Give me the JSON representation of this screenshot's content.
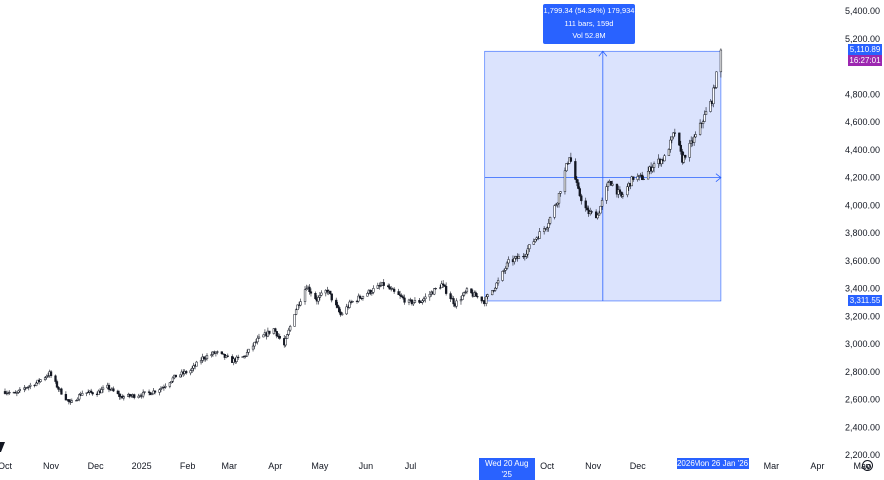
{
  "chart_data": {
    "type": "candlestick",
    "y_axis": {
      "ticks": [
        "5,400.00",
        "5,200.00",
        "4,800.00",
        "4,600.00",
        "4,400.00",
        "4,200.00",
        "4,000.00",
        "3,800.00",
        "3,600.00",
        "3,400.00",
        "3,200.00",
        "3,000.00",
        "2,800.00",
        "2,600.00",
        "2,400.00",
        "2,200.00"
      ],
      "tick_values": [
        5400,
        5200,
        4800,
        4600,
        4400,
        4200,
        4000,
        3800,
        3600,
        3400,
        3200,
        3000,
        2800,
        2600,
        2400,
        2200
      ],
      "range": [
        2180,
        5480
      ]
    },
    "x_axis": {
      "ticks": [
        "Oct",
        "Nov",
        "Dec",
        "2025",
        "Feb",
        "Mar",
        "Apr",
        "May",
        "Jun",
        "Jul",
        "Oct",
        "Nov",
        "Dec",
        "Mar",
        "Apr",
        "May"
      ],
      "tick_dates": [
        "2024-10-01",
        "2024-11-01",
        "2024-12-01",
        "2025-01-01",
        "2025-02-01",
        "2025-03-01",
        "2025-04-01",
        "2025-05-01",
        "2025-06-01",
        "2025-07-01",
        "2025-10-01",
        "2025-11-01",
        "2025-12-01",
        "2026-03-01",
        "2026-04-01",
        "2026-05-01"
      ],
      "range": [
        "2024-10-01",
        "2026-05-01"
      ]
    },
    "price_path": [
      [
        "2024-10-01",
        2660
      ],
      [
        "2024-10-08",
        2640
      ],
      [
        "2024-10-15",
        2690
      ],
      [
        "2024-10-22",
        2720
      ],
      [
        "2024-10-31",
        2790
      ],
      [
        "2024-11-06",
        2680
      ],
      [
        "2024-11-14",
        2570
      ],
      [
        "2024-11-22",
        2650
      ],
      [
        "2024-12-02",
        2650
      ],
      [
        "2024-12-09",
        2690
      ],
      [
        "2024-12-18",
        2620
      ],
      [
        "2024-12-27",
        2630
      ],
      [
        "2025-01-07",
        2650
      ],
      [
        "2025-01-15",
        2690
      ],
      [
        "2025-01-24",
        2770
      ],
      [
        "2025-02-03",
        2810
      ],
      [
        "2025-02-11",
        2900
      ],
      [
        "2025-02-20",
        2940
      ],
      [
        "2025-03-03",
        2880
      ],
      [
        "2025-03-11",
        2910
      ],
      [
        "2025-03-20",
        3030
      ],
      [
        "2025-03-31",
        3110
      ],
      [
        "2025-04-07",
        2990
      ],
      [
        "2025-04-14",
        3230
      ],
      [
        "2025-04-22",
        3420
      ],
      [
        "2025-04-29",
        3320
      ],
      [
        "2025-05-06",
        3390
      ],
      [
        "2025-05-15",
        3210
      ],
      [
        "2025-05-22",
        3300
      ],
      [
        "2025-06-02",
        3370
      ],
      [
        "2025-06-13",
        3430
      ],
      [
        "2025-06-20",
        3370
      ],
      [
        "2025-06-30",
        3300
      ],
      [
        "2025-07-08",
        3310
      ],
      [
        "2025-07-22",
        3430
      ],
      [
        "2025-07-31",
        3290
      ],
      [
        "2025-08-08",
        3380
      ],
      [
        "2025-08-20",
        3311.55
      ],
      [
        "2025-08-29",
        3450
      ],
      [
        "2025-09-05",
        3590
      ],
      [
        "2025-09-15",
        3640
      ],
      [
        "2025-09-23",
        3760
      ],
      [
        "2025-10-01",
        3860
      ],
      [
        "2025-10-08",
        4040
      ],
      [
        "2025-10-16",
        4360
      ],
      [
        "2025-10-22",
        4100
      ],
      [
        "2025-10-28",
        3950
      ],
      [
        "2025-11-04",
        3930
      ],
      [
        "2025-11-12",
        4180
      ],
      [
        "2025-11-20",
        4060
      ],
      [
        "2025-11-28",
        4200
      ],
      [
        "2025-12-05",
        4200
      ],
      [
        "2025-12-12",
        4300
      ],
      [
        "2025-12-19",
        4340
      ],
      [
        "2025-12-26",
        4530
      ],
      [
        "2025-12-31",
        4330
      ],
      [
        "2026-01-09",
        4500
      ],
      [
        "2026-01-14",
        4620
      ],
      [
        "2026-01-20",
        4760
      ],
      [
        "2026-01-26",
        5110.89
      ]
    ],
    "measure_box": {
      "start_date": "2025-08-20",
      "end_date": "2026-01-26",
      "low_price": 3311.55,
      "high_price": 5110.89
    },
    "crosshair_price": 4200,
    "last_price": "5,110.89",
    "last_price_value": 5110.89,
    "countdown": "16:27:01",
    "range_start_label": "3,311.55",
    "range_start_value": 3311.55,
    "date_label_start": "Wed 20 Aug '25",
    "date_label_end": "Mon 26 Jan '26",
    "date_label_start_value": "2025-08-20",
    "date_label_end_value": "2026-01-26",
    "year_label_partial": "2026",
    "measure_info": {
      "line1": "1,799.34 (54.34%) 179,934",
      "line2": "111 bars, 159d",
      "line3": "Vol 52.8M"
    },
    "colors": {
      "candle": "#131722",
      "measure_fill": "#dbe3fd",
      "measure_line": "#2962ff",
      "price_tag": "#2962ff",
      "countdown_tag": "#9c27b0",
      "axis_text": "#131722"
    }
  }
}
